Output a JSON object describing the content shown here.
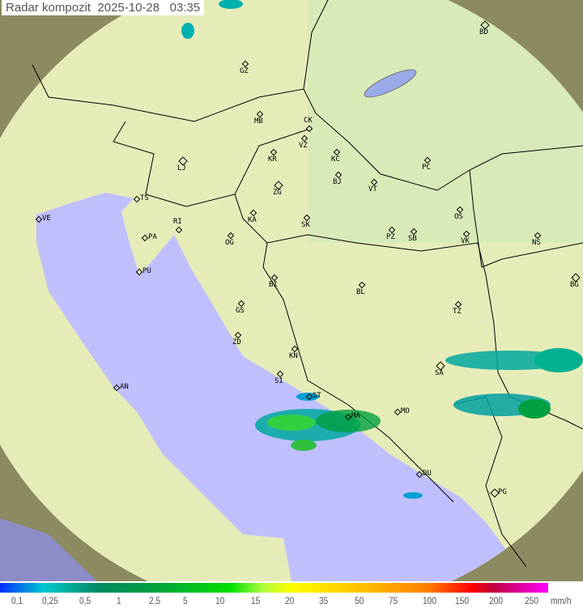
{
  "header": {
    "title": "Radar kompozit",
    "date": "2025-10-28",
    "time": "03:35"
  },
  "legend": {
    "ticks": [
      "0,1",
      "0,25",
      "0,5",
      "1",
      "2,5",
      "5",
      "10",
      "15",
      "20",
      "35",
      "50",
      "75",
      "100",
      "150",
      "200",
      "250"
    ],
    "unit": "mm/h",
    "colors": [
      "#0030ff",
      "#00c8d0",
      "#008a60",
      "#00a040",
      "#00e000",
      "#ffff00",
      "#ffc000",
      "#ff8000",
      "#ff0000",
      "#c00040",
      "#ff00ff"
    ]
  },
  "map": {
    "colors": {
      "land": "#e6ecb8",
      "sea": "#c0c0ff",
      "outside": "#8c8a60",
      "border": "#000000",
      "lake": "#9aaae8"
    },
    "cities": [
      "GZ",
      "BD",
      "MB",
      "CK",
      "VZ",
      "KR",
      "KC",
      "PC",
      "LJ",
      "ZG",
      "BJ",
      "VT",
      "TS",
      "VE",
      "RI",
      "KA",
      "SK",
      "OS",
      "PA",
      "OG",
      "PZ",
      "SB",
      "VK",
      "NS",
      "PU",
      "BI",
      "BL",
      "BG",
      "GS",
      "TZ",
      "ZD",
      "KN",
      "SI",
      "SA",
      "AN",
      "ST",
      "MO",
      "MA",
      "DU",
      "PG"
    ]
  }
}
